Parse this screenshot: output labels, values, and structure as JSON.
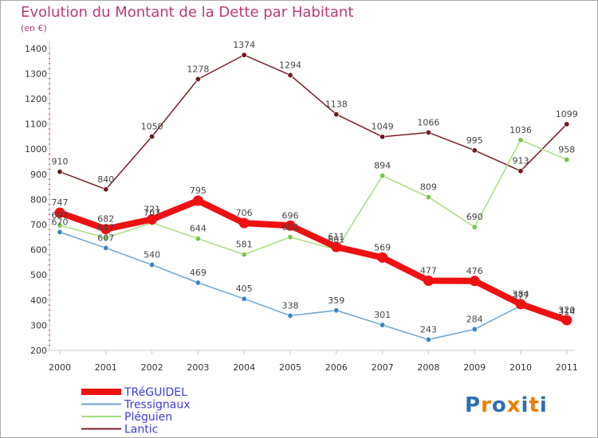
{
  "title": "Evolution du Montant de la Dette par Habitant",
  "subtitle": "(en €)",
  "logo": {
    "letters": [
      "P",
      "r",
      "o",
      "x",
      "i",
      "t",
      "i"
    ],
    "colors": [
      "#2e6db6",
      "#f07d00",
      "#2e6db6",
      "#f07d00",
      "#2e6db6",
      "#f07d00",
      "#2e6db6"
    ]
  },
  "chart_data": {
    "type": "line",
    "x": [
      "2000",
      "2001",
      "2002",
      "2003",
      "2004",
      "2005",
      "2006",
      "2007",
      "2008",
      "2009",
      "2010",
      "2011"
    ],
    "ylim": [
      200,
      1400
    ],
    "yticks": [
      "200",
      "300",
      "400",
      "500",
      "600",
      "700",
      "800",
      "900",
      "1000",
      "1100",
      "1200",
      "1300",
      "1400"
    ],
    "grid": false,
    "legend_position": "bottom-left",
    "series": [
      {
        "name": "Lantic",
        "color": "#7a1e24",
        "pointColor": "#6e1a20",
        "values": [
          910,
          840,
          1050,
          1278,
          1374,
          1294,
          1138,
          1049,
          1066,
          995,
          913,
          1099
        ]
      },
      {
        "name": "Pléguien",
        "color": "#a6dd7e",
        "pointColor": "#79c64a",
        "values": [
          697,
          647,
          707,
          644,
          581,
          650,
          601,
          894,
          809,
          690,
          1036,
          958
        ]
      },
      {
        "name": "Tressignaux",
        "color": "#6aa6d4",
        "pointColor": "#3c85c4",
        "values": [
          670,
          607,
          540,
          469,
          405,
          338,
          359,
          301,
          243,
          284,
          377,
          314
        ]
      },
      {
        "name": "TRéGUIDEL",
        "color": "#ee1111",
        "pointColor": "#ee1111",
        "values": [
          747,
          682,
          721,
          795,
          706,
          696,
          611,
          569,
          477,
          476,
          384,
          320
        ]
      }
    ],
    "data_labels": [
      [
        "910",
        "840",
        "1050",
        "1278",
        "1374",
        "1294",
        "1138",
        "1049",
        "1066",
        "995",
        "913",
        "1099"
      ],
      [
        "697",
        "647",
        "707",
        "644",
        "581",
        "650",
        "601",
        "894",
        "809",
        "690",
        "1036",
        "958"
      ],
      [
        "670",
        "607",
        "540",
        "469",
        "405",
        "338",
        "359",
        "301",
        "243",
        "284",
        "377",
        "314"
      ],
      [
        "747",
        "682",
        "721",
        "795",
        "706",
        "696",
        "611",
        "569",
        "477",
        "476",
        "384",
        "320"
      ]
    ],
    "legend": [
      {
        "name": "TRéGUIDEL",
        "color": "#ee1111",
        "thick": true
      },
      {
        "name": "Tressignaux",
        "color": "#6aa6d4",
        "thick": false
      },
      {
        "name": "Pléguien",
        "color": "#a6dd7e",
        "thick": false
      },
      {
        "name": "Lantic",
        "color": "#7a1e24",
        "thick": false
      }
    ]
  }
}
